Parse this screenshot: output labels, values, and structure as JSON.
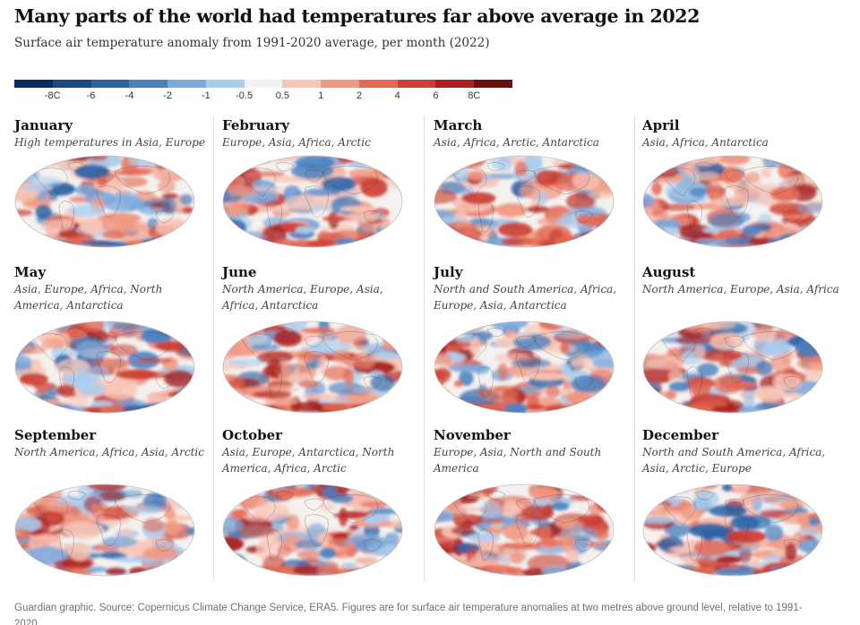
{
  "title": "Many parts of the world had temperatures far above average in 2022",
  "subtitle": "Surface air temperature anomaly from 1991-2020 average, per month (2022)",
  "legend": {
    "colors": [
      "#052f61",
      "#1a4b86",
      "#2c64a6",
      "#4a82c0",
      "#78a8dc",
      "#a9cdf0",
      "#f2f2f2",
      "#f9c5b6",
      "#f19881",
      "#e46a54",
      "#cc3f33",
      "#a8201f",
      "#6e0d0f"
    ],
    "ticks": [
      "-8C",
      "-6",
      "-4",
      "-2",
      "-1",
      "-0.5",
      "0.5",
      "1",
      "2",
      "4",
      "6",
      "8C"
    ]
  },
  "panels": [
    {
      "month": "January",
      "desc": "High temperatures in Asia, Europe"
    },
    {
      "month": "February",
      "desc": "Europe, Asia, Africa, Arctic"
    },
    {
      "month": "March",
      "desc": "Asia, Africa, Arctic, Antarctica"
    },
    {
      "month": "April",
      "desc": "Asia, Africa, Antarctica"
    },
    {
      "month": "May",
      "desc": "Asia, Europe, Africa, North America, Antarctica"
    },
    {
      "month": "June",
      "desc": "North America, Europe, Asia, Africa, Antarctica"
    },
    {
      "month": "July",
      "desc": "North and South America, Africa, Europe, Asia, Antarctica"
    },
    {
      "month": "August",
      "desc": "North America, Europe, Asia, Africa"
    },
    {
      "month": "September",
      "desc": "North America, Africa, Asia, Arctic"
    },
    {
      "month": "October",
      "desc": "Asia, Europe, Antarctica, North America, Africa, Arctic"
    },
    {
      "month": "November",
      "desc": "Europe, Asia, North and South America"
    },
    {
      "month": "December",
      "desc": "North and South America, Africa, Asia, Arctic, Europe"
    }
  ],
  "footnote": "Guardian graphic. Source: Copernicus Climate Change Service, ERA5. Figures are for surface air temperature anomalies at two metres above ground level, relative to 1991-2020"
}
